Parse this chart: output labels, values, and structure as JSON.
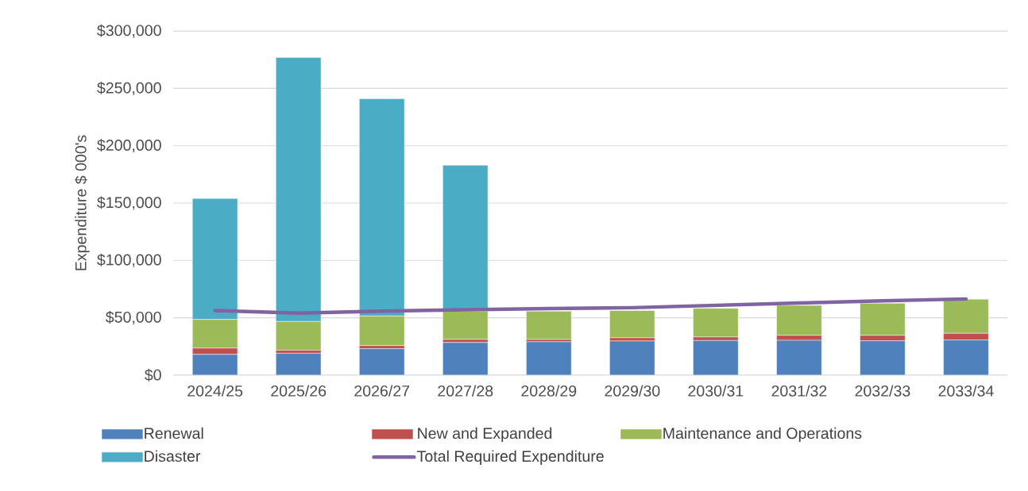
{
  "chart_data": {
    "type": "bar",
    "stacked": true,
    "ylabel": "Expenditure $ 000's",
    "categories": [
      "2024/25",
      "2025/26",
      "2026/27",
      "2027/28",
      "2028/29",
      "2029/30",
      "2030/31",
      "2031/32",
      "2032/33",
      "2033/34"
    ],
    "series": [
      {
        "name": "Renewal",
        "color": "#4f81bd",
        "values": [
          18000,
          19000,
          23000,
          28400,
          29000,
          29700,
          30100,
          30300,
          29900,
          30600
        ]
      },
      {
        "name": "New and Expanded",
        "color": "#c0504d",
        "values": [
          5500,
          2700,
          2700,
          2700,
          2000,
          2800,
          3100,
          4400,
          4800,
          5800
        ]
      },
      {
        "name": "Maintenance and Operations",
        "color": "#9bbb59",
        "values": [
          25000,
          25000,
          25800,
          24600,
          24700,
          23800,
          25000,
          26100,
          27900,
          29800
        ]
      },
      {
        "name": "Disaster",
        "color": "#4bacc6",
        "values": [
          105500,
          230300,
          189500,
          127300,
          null,
          null,
          null,
          null,
          null,
          null
        ]
      },
      {
        "name": "Total Required Expenditure",
        "type": "line",
        "color": "#8064a2",
        "values": [
          56300,
          54000,
          55700,
          57000,
          58000,
          58800,
          60800,
          62800,
          64700,
          66400
        ]
      }
    ],
    "ylim": [
      0,
      300000
    ],
    "yticks": [
      {
        "value": 0,
        "label": "$0"
      },
      {
        "value": 50000,
        "label": "$50,000"
      },
      {
        "value": 100000,
        "label": "$100,000"
      },
      {
        "value": 150000,
        "label": "$150,000"
      },
      {
        "value": 200000,
        "label": "$200,000"
      },
      {
        "value": 250000,
        "label": "$250,000"
      },
      {
        "value": 300000,
        "label": "$300,000"
      }
    ],
    "grid": "y",
    "legend": "bottom",
    "marker": "none",
    "line_style": "solid"
  }
}
